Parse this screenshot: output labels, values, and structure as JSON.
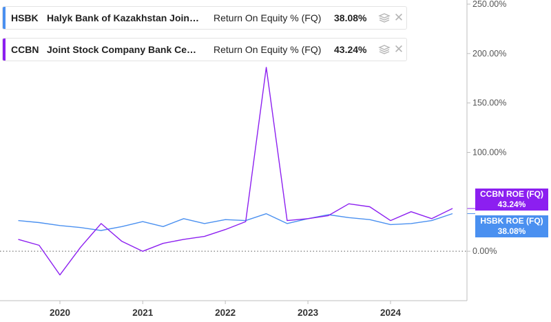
{
  "legend": [
    {
      "ticker": "HSBK",
      "company": "Halyk Bank of Kazakhstan Join…",
      "metric": "Return On Equity % (FQ)",
      "value": "38.08%",
      "color": "#4a90f0",
      "stack_icon": "layers-icon",
      "close_icon": "close-icon"
    },
    {
      "ticker": "CCBN",
      "company": "Joint Stock Company Bank Ce…",
      "metric": "Return On Equity % (FQ)",
      "value": "43.24%",
      "color": "#8c1ff0",
      "stack_icon": "layers-icon",
      "close_icon": "close-icon"
    }
  ],
  "end_labels": [
    {
      "name": "CCBN ROE (FQ)",
      "value": "43.24%",
      "color": "#8c1ff0"
    },
    {
      "name": "HSBK ROE (FQ)",
      "value": "38.08%",
      "color": "#4a90f0"
    }
  ],
  "chart_data": {
    "type": "line",
    "x_axis_labels": [
      "2020",
      "2021",
      "2022",
      "2023",
      "2024"
    ],
    "y_axis_labels": [
      "250.00%",
      "200.00%",
      "150.00%",
      "100.00%",
      "0.00%"
    ],
    "ylim": [
      -50,
      250
    ],
    "zero_line": "dotted",
    "series": [
      {
        "name": "HSBK",
        "color": "#4a90f0",
        "x": [
          "2019-07-01",
          "2019-10-01",
          "2020-01-01",
          "2020-04-01",
          "2020-07-01",
          "2020-10-01",
          "2021-01-01",
          "2021-04-01",
          "2021-07-01",
          "2021-10-01",
          "2022-01-01",
          "2022-04-01",
          "2022-07-01",
          "2022-10-01",
          "2023-01-01",
          "2023-04-01",
          "2023-07-01",
          "2023-10-01",
          "2024-01-01",
          "2024-04-01",
          "2024-07-01",
          "2024-10-01"
        ],
        "values": [
          31,
          29,
          26,
          24,
          21,
          25,
          30,
          25,
          33,
          28,
          32,
          31,
          38,
          28,
          33,
          37,
          34,
          32,
          27,
          28,
          31,
          38.08
        ]
      },
      {
        "name": "CCBN",
        "color": "#8c1ff0",
        "x": [
          "2019-07-01",
          "2019-10-01",
          "2020-01-01",
          "2020-04-01",
          "2020-07-01",
          "2020-10-01",
          "2021-01-01",
          "2021-04-01",
          "2021-07-01",
          "2021-10-01",
          "2022-01-01",
          "2022-04-01",
          "2022-07-01",
          "2022-10-01",
          "2023-01-01",
          "2023-04-01",
          "2023-07-01",
          "2023-10-01",
          "2024-01-01",
          "2024-04-01",
          "2024-07-01",
          "2024-10-01"
        ],
        "values": [
          12,
          6,
          -24,
          4,
          28,
          10,
          0,
          8,
          12,
          15,
          22,
          30,
          186,
          31,
          33,
          36,
          48,
          45,
          31,
          40,
          33,
          43.24
        ]
      }
    ]
  }
}
